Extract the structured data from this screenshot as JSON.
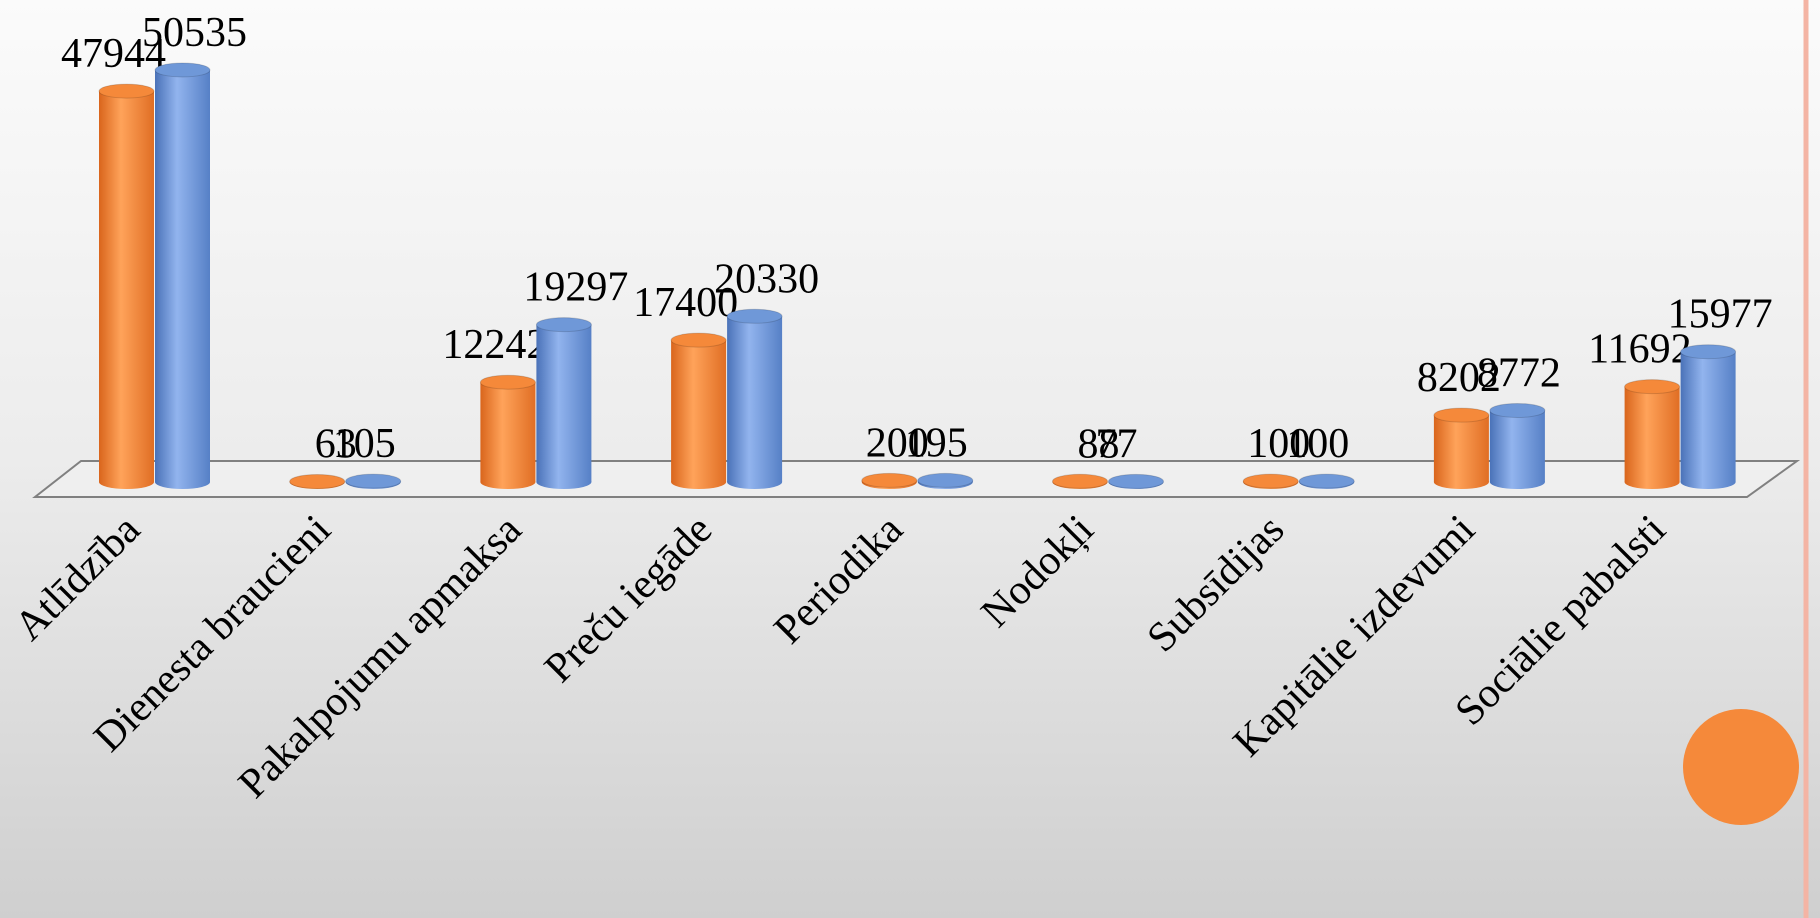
{
  "chart_data": {
    "type": "bar3d",
    "categories": [
      "Atlīdzība",
      "Dienesta braucieni",
      "Pakalpojumu apmaksa",
      "Preču iegāde",
      "Periodika",
      "Nodokļi",
      "Subsīdijas",
      "Kapitālie izdevumi",
      "Sociālie pabalsti"
    ],
    "series": [
      {
        "color": "#f5893a",
        "values": [
          47944,
          63,
          12242,
          17400,
          200,
          88,
          100,
          8202,
          11692
        ]
      },
      {
        "color": "#6f98d8",
        "values": [
          50535,
          105,
          19297,
          20330,
          195,
          77,
          100,
          8772,
          15977
        ]
      }
    ]
  }
}
